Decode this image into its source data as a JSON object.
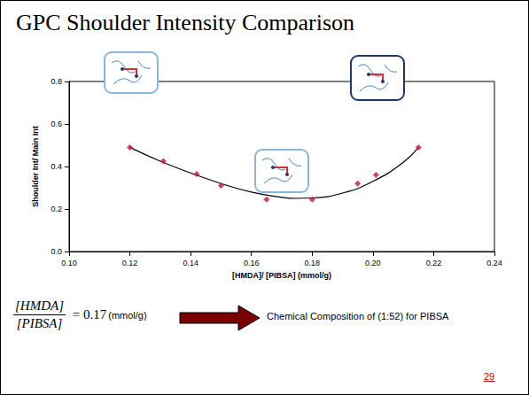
{
  "chart_data": {
    "type": "scatter",
    "title": "GPC Shoulder Intensity Comparison",
    "x_label": "[HMDA]/ [PIBSA] (mmol/g)",
    "y_label": "Shoulder Int/ Main Int",
    "xlim": [
      0.1,
      0.24
    ],
    "xticks": [
      {
        "value": 0.1,
        "label": "0.10"
      },
      0.12,
      0.14,
      0.16,
      0.18,
      {
        "value": 0.2,
        "label": "0.20"
      },
      0.22,
      0.24
    ],
    "ylim": [
      0,
      0.8
    ],
    "yticks": [
      {
        "value": 0,
        "label": "0.0"
      },
      0.2,
      0.4,
      0.6,
      0.8
    ],
    "grid": false,
    "series": [
      {
        "type": "scatter",
        "marker": "diamond",
        "color": "#c0143c",
        "x": [
          0.12,
          0.131,
          0.142,
          0.15,
          0.165,
          0.18,
          0.195,
          0.201,
          0.215
        ],
        "values": [
          0.49,
          0.425,
          0.365,
          0.31,
          0.245,
          0.245,
          0.32,
          0.36,
          0.49
        ]
      },
      {
        "type": "line",
        "line_style": "solid",
        "color": "#000000",
        "x": [
          0.12,
          0.13,
          0.14,
          0.15,
          0.16,
          0.17,
          0.175,
          0.18,
          0.19,
          0.2,
          0.21,
          0.215
        ],
        "values": [
          0.49,
          0.425,
          0.37,
          0.32,
          0.28,
          0.255,
          0.25,
          0.252,
          0.275,
          0.33,
          0.42,
          0.49
        ]
      }
    ]
  },
  "slide": {
    "equation": {
      "numerator": "[HMDA]",
      "denominator": "[PIBSA]",
      "operator": "=",
      "value": 0.17,
      "unit": "(mmol/g)"
    },
    "result": "Chemical Composition of (1:52) for PIBSA",
    "page": "29"
  }
}
